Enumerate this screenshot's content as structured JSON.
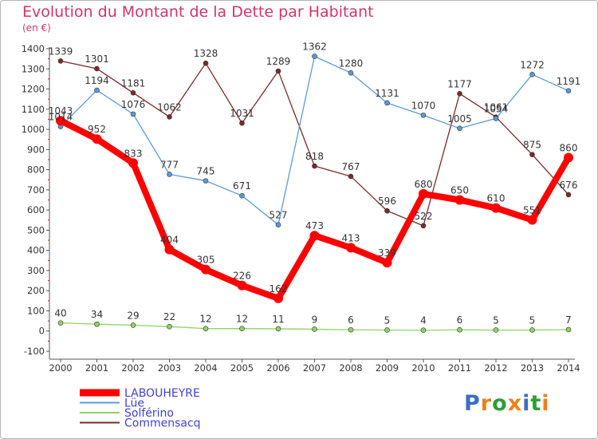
{
  "title": "Evolution du Montant de la Dette par Habitant",
  "unit_label": "(en €)",
  "logo": {
    "letters": [
      "P",
      "r",
      "o",
      "x",
      "i",
      "t",
      "i"
    ],
    "colors": [
      "#3a6fc4",
      "#e8821e",
      "#2e9d3a",
      "#e8821e",
      "#3a6fc4",
      "#2e9d3a",
      "#e8821e"
    ]
  },
  "chart_data": {
    "type": "line",
    "title": "Evolution du Montant de la Dette par Habitant",
    "ylabel": "(en €)",
    "xlabel": "",
    "x": [
      "2000",
      "2001",
      "2002",
      "2003",
      "2004",
      "2005",
      "2006",
      "2007",
      "2008",
      "2009",
      "2010",
      "2011",
      "2012",
      "2013",
      "2014"
    ],
    "ylim": [
      -100,
      1400
    ],
    "yticks": [
      -100,
      0,
      100,
      200,
      300,
      400,
      500,
      600,
      700,
      800,
      900,
      1000,
      1100,
      1200,
      1300,
      1400
    ],
    "grid": false,
    "legend_position": "bottom-left",
    "series": [
      {
        "name": "LABOUHEYRE",
        "color": "#ff0000",
        "values": [
          1043,
          952,
          833,
          404,
          305,
          226,
          162,
          473,
          413,
          339,
          680,
          650,
          610,
          551,
          860
        ],
        "labels": [
          "1043",
          "952",
          "833",
          "404",
          "305",
          "226",
          "162",
          "473",
          "413",
          "339",
          "680",
          "650",
          "610",
          "551",
          "860"
        ]
      },
      {
        "name": "Lüe",
        "color": "#5b9bd5",
        "values": [
          1014,
          1194,
          1076,
          777,
          745,
          671,
          527,
          1362,
          1280,
          1131,
          1070,
          1005,
          1054,
          1272,
          1191
        ],
        "labels": [
          "1014",
          "1194",
          "1076",
          "777",
          "745",
          "671",
          "527",
          "1362",
          "1280",
          "1131",
          "1070",
          "1005",
          "1054",
          "1272",
          "1191"
        ]
      },
      {
        "name": "Solférino",
        "color": "#8ed45f",
        "values": [
          40,
          34,
          29,
          22,
          12,
          12,
          11,
          9,
          6,
          5,
          4,
          6,
          5,
          5,
          7
        ],
        "labels": [
          "40",
          "34",
          "29",
          "22",
          "12",
          "12",
          "11",
          "9",
          "6",
          "5",
          "4",
          "6",
          "5",
          "5",
          "7"
        ]
      },
      {
        "name": "Commensacq",
        "color": "#7a2a2a",
        "values": [
          1339,
          1301,
          1181,
          1062,
          1328,
          1031,
          1289,
          818,
          767,
          596,
          522,
          1177,
          1061,
          875,
          676
        ],
        "labels": [
          "1339",
          "1301",
          "1181",
          "1062",
          "1328",
          "1031",
          "1289",
          "818",
          "767",
          "596",
          "522",
          "1177",
          "1061",
          "875",
          "676"
        ]
      }
    ]
  }
}
